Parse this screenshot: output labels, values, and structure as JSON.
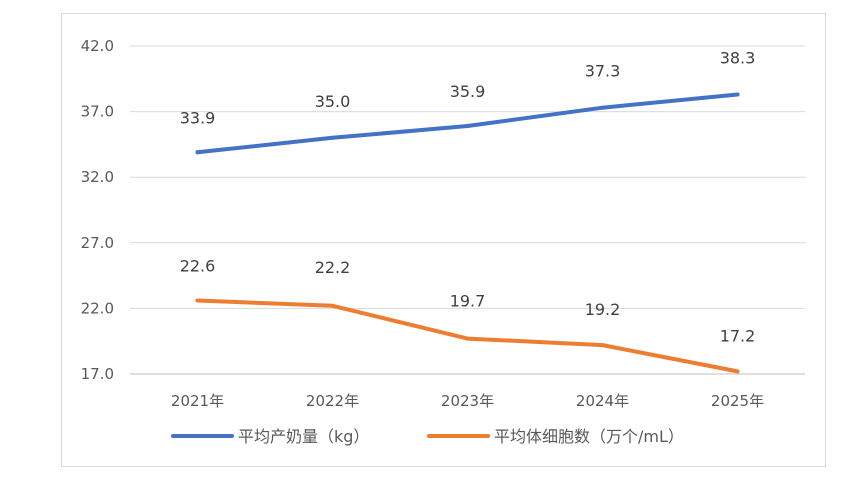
{
  "chart_data": {
    "type": "line",
    "categories": [
      "2021年",
      "2022年",
      "2023年",
      "2024年",
      "2025年"
    ],
    "series": [
      {
        "name": "平均产奶量（kg）",
        "values": [
          33.9,
          35.0,
          35.9,
          37.3,
          38.3
        ],
        "labels": [
          "33.9",
          "35.0",
          "35.9",
          "37.3",
          "38.3"
        ],
        "color": "#4472c4"
      },
      {
        "name": "平均体细胞数（万个/mL）",
        "values": [
          22.6,
          22.2,
          19.7,
          19.2,
          17.2
        ],
        "labels": [
          "22.6",
          "22.2",
          "19.7",
          "19.2",
          "17.2"
        ],
        "color": "#ed7d31"
      }
    ],
    "yticks": [
      "17.0",
      "22.0",
      "27.0",
      "32.0",
      "37.0",
      "42.0"
    ],
    "ylim": [
      17.0,
      42.0
    ],
    "grid": true,
    "legend_position": "bottom",
    "title": "",
    "xlabel": "",
    "ylabel": ""
  }
}
